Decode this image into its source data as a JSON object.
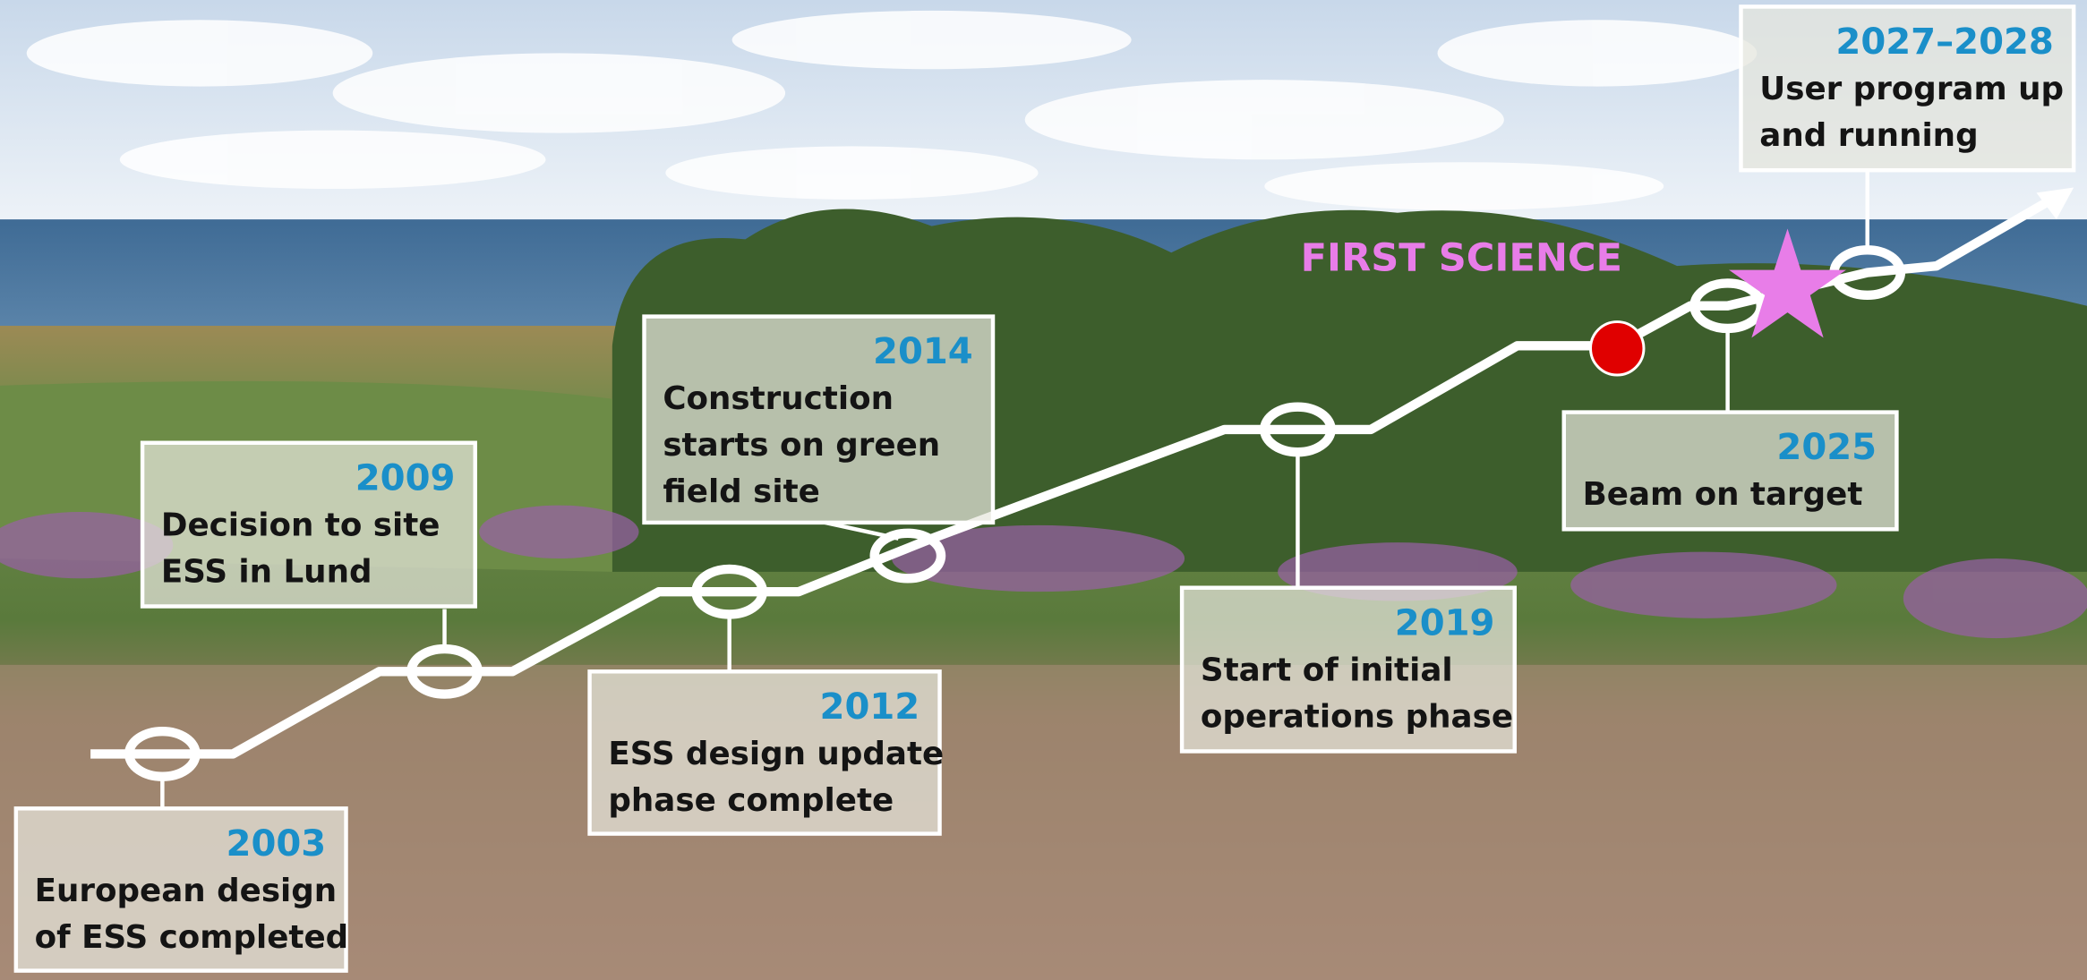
{
  "first_science": "FIRST SCIENCE",
  "milestones": [
    {
      "year": "2003",
      "text": [
        "European design",
        "of ESS completed"
      ]
    },
    {
      "year": "2009",
      "text": [
        "Decision to site",
        "ESS in Lund"
      ]
    },
    {
      "year": "2012",
      "text": [
        "ESS design update",
        "phase complete"
      ]
    },
    {
      "year": "2014",
      "text": [
        "Construction",
        "starts on green",
        "field site"
      ]
    },
    {
      "year": "2019",
      "text": [
        "Start of initial",
        "operations phase"
      ]
    },
    {
      "year": "2025",
      "text": [
        "Beam on target"
      ]
    },
    {
      "year": "2027–2028",
      "text": [
        "User program up",
        "and running"
      ]
    }
  ]
}
